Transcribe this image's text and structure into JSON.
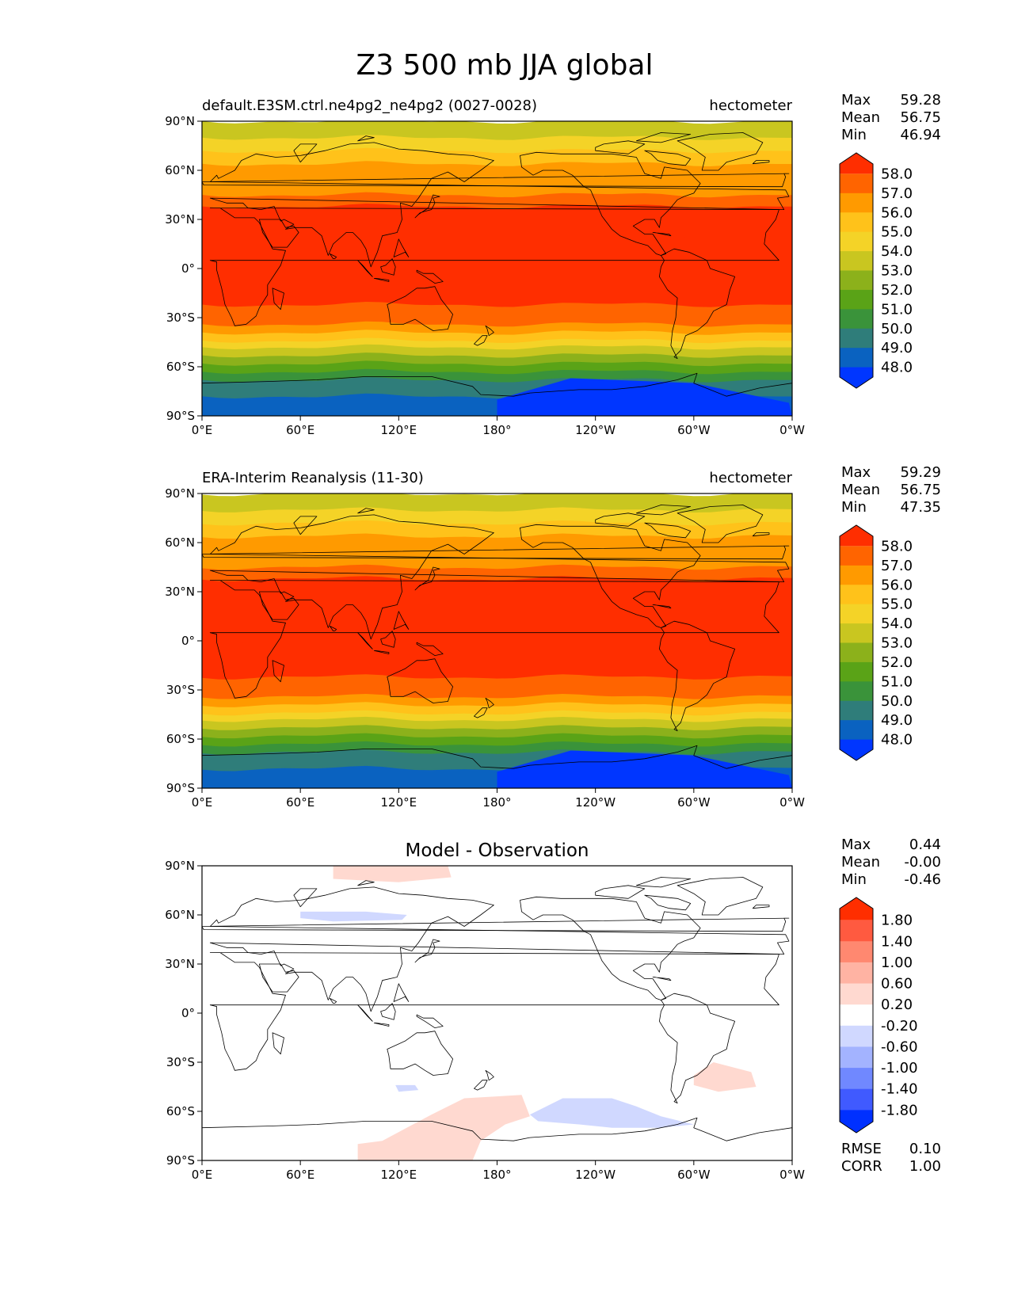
{
  "figure": {
    "title": "Z3 500 mb JJA global"
  },
  "chart_data": [
    {
      "type": "heatmap",
      "title": "default.E3SM.ctrl.ne4pg2_ne4pg2 (0027-0028)",
      "units": "hectometer",
      "stats": [
        {
          "label": "Max",
          "value": "59.28"
        },
        {
          "label": "Mean",
          "value": "56.75"
        },
        {
          "label": "Min",
          "value": "46.94"
        }
      ],
      "xlim": [
        0,
        360
      ],
      "ylim": [
        -90,
        90
      ],
      "x_ticks": [
        "0°E",
        "60°E",
        "120°E",
        "180°",
        "120°W",
        "60°W",
        "0°W"
      ],
      "y_ticks": [
        "90°N",
        "60°N",
        "30°N",
        "0°",
        "30°S",
        "60°S",
        "90°S"
      ],
      "colorbar": {
        "levels": [
          "58.0",
          "57.0",
          "56.0",
          "55.0",
          "54.0",
          "53.0",
          "52.0",
          "51.0",
          "50.0",
          "49.0",
          "48.0"
        ],
        "colors": [
          "#ff2e00",
          "#ff6400",
          "#ff9a00",
          "#ffc21a",
          "#f4d327",
          "#c9c620",
          "#8cb11b",
          "#5aa317",
          "#3a933a",
          "#2f7d7a",
          "#0a62c0",
          "#0036ff"
        ]
      },
      "bands": [
        {
          "lat": 90,
          "value": 53.3
        },
        {
          "lat": 80,
          "value": 54.4
        },
        {
          "lat": 72,
          "value": 55.3
        },
        {
          "lat": 64,
          "value": 56.0
        },
        {
          "lat": 55,
          "value": 56.8
        },
        {
          "lat": 45,
          "value": 57.5
        },
        {
          "lat": 38,
          "value": 58.3
        },
        {
          "lat": 20,
          "value": 58.8
        },
        {
          "lat": 0,
          "value": 58.8
        },
        {
          "lat": -18,
          "value": 58.5
        },
        {
          "lat": -22,
          "value": 57.8
        },
        {
          "lat": -28,
          "value": 57.0
        },
        {
          "lat": -34,
          "value": 56.1
        },
        {
          "lat": -39,
          "value": 55.2
        },
        {
          "lat": -44,
          "value": 54.2
        },
        {
          "lat": -48,
          "value": 53.2
        },
        {
          "lat": -53,
          "value": 52.3
        },
        {
          "lat": -58,
          "value": 51.3
        },
        {
          "lat": -63,
          "value": 50.4
        },
        {
          "lat": -68,
          "value": 49.5
        },
        {
          "lat": -78,
          "value": 48.6
        },
        {
          "lat": -90,
          "value": 48.4
        }
      ]
    },
    {
      "type": "heatmap",
      "title": "ERA-Interim Reanalysis (11-30)",
      "units": "hectometer",
      "stats": [
        {
          "label": "Max",
          "value": "59.29"
        },
        {
          "label": "Mean",
          "value": "56.75"
        },
        {
          "label": "Min",
          "value": "47.35"
        }
      ],
      "xlim": [
        0,
        360
      ],
      "ylim": [
        -90,
        90
      ],
      "x_ticks": [
        "0°E",
        "60°E",
        "120°E",
        "180°",
        "120°W",
        "60°W",
        "0°W"
      ],
      "y_ticks": [
        "90°N",
        "60°N",
        "30°N",
        "0°",
        "30°S",
        "60°S",
        "90°S"
      ],
      "colorbar": {
        "levels": [
          "58.0",
          "57.0",
          "56.0",
          "55.0",
          "54.0",
          "53.0",
          "52.0",
          "51.0",
          "50.0",
          "49.0",
          "48.0"
        ],
        "colors": [
          "#ff2e00",
          "#ff6400",
          "#ff9a00",
          "#ffc21a",
          "#f4d327",
          "#c9c620",
          "#8cb11b",
          "#5aa317",
          "#3a933a",
          "#2f7d7a",
          "#0a62c0",
          "#0036ff"
        ]
      },
      "bands": [
        {
          "lat": 90,
          "value": 53.1
        },
        {
          "lat": 80,
          "value": 54.4
        },
        {
          "lat": 72,
          "value": 55.3
        },
        {
          "lat": 64,
          "value": 56.0
        },
        {
          "lat": 55,
          "value": 56.8
        },
        {
          "lat": 45,
          "value": 57.5
        },
        {
          "lat": 38,
          "value": 58.3
        },
        {
          "lat": 20,
          "value": 58.8
        },
        {
          "lat": 0,
          "value": 58.8
        },
        {
          "lat": -18,
          "value": 58.5
        },
        {
          "lat": -22,
          "value": 57.8
        },
        {
          "lat": -28,
          "value": 57.0
        },
        {
          "lat": -34,
          "value": 56.1
        },
        {
          "lat": -39,
          "value": 55.2
        },
        {
          "lat": -44,
          "value": 54.2
        },
        {
          "lat": -48,
          "value": 53.2
        },
        {
          "lat": -53,
          "value": 52.3
        },
        {
          "lat": -58,
          "value": 51.3
        },
        {
          "lat": -63,
          "value": 50.4
        },
        {
          "lat": -68,
          "value": 49.5
        },
        {
          "lat": -78,
          "value": 48.6
        },
        {
          "lat": -90,
          "value": 48.4
        }
      ]
    },
    {
      "type": "heatmap",
      "title": "Model - Observation",
      "units": "",
      "stats": [
        {
          "label": "Max",
          "value": "0.44"
        },
        {
          "label": "Mean",
          "value": "-0.00"
        },
        {
          "label": "Min",
          "value": "-0.46"
        }
      ],
      "footer": [
        {
          "label": "RMSE",
          "value": "0.10"
        },
        {
          "label": "CORR",
          "value": "1.00"
        }
      ],
      "xlim": [
        0,
        360
      ],
      "ylim": [
        -90,
        90
      ],
      "x_ticks": [
        "0°E",
        "60°E",
        "120°E",
        "180°",
        "120°W",
        "60°W",
        "0°W"
      ],
      "y_ticks": [
        "90°N",
        "60°N",
        "30°N",
        "0°",
        "30°S",
        "60°S",
        "90°S"
      ],
      "colorbar": {
        "levels": [
          "1.80",
          "1.40",
          "1.00",
          "0.60",
          "0.20",
          "-0.20",
          "-0.60",
          "-1.00",
          "-1.40",
          "-1.80"
        ],
        "colors": [
          "#ff2e00",
          "#ff5a40",
          "#ff8870",
          "#ffb3a3",
          "#ffd9d0",
          "#ffffff",
          "#d0d8ff",
          "#a3b3ff",
          "#7088ff",
          "#405aff",
          "#0030ff"
        ]
      },
      "anomalies": [
        {
          "lon": 90,
          "lat": 86,
          "value": 0.3
        },
        {
          "lon": 100,
          "lat": 59,
          "value": -0.3
        },
        {
          "lon": 125,
          "lat": -46,
          "value": -0.3
        },
        {
          "lon": 150,
          "lat": -75,
          "value": 0.3
        },
        {
          "lon": 240,
          "lat": -66,
          "value": -0.3
        },
        {
          "lon": 325,
          "lat": -40,
          "value": 0.3
        }
      ]
    }
  ]
}
